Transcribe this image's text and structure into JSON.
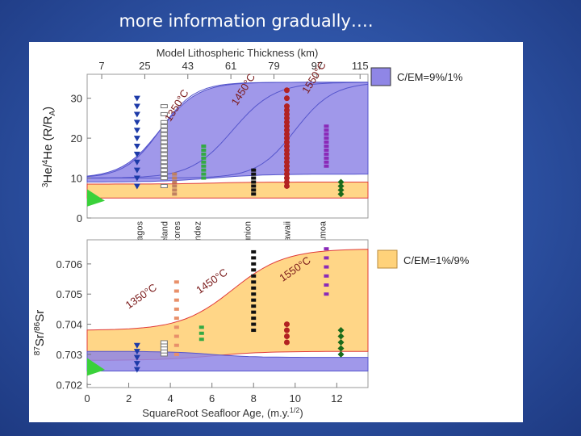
{
  "slide": {
    "title": "more information gradually…."
  },
  "figure": {
    "top_axis_label": "Model Lithospheric Thickness (km)",
    "top_ticks": [
      "7",
      "25",
      "43",
      "61",
      "79",
      "97",
      "115"
    ],
    "bottom_axis_label": "SquareRoot Seafloor Age, (m.y.",
    "bottom_axis_sup": "1/2",
    "bottom_axis_tail": ")",
    "colors": {
      "purple_band": "#8f86e6",
      "orange_band": "#ffd27a",
      "red_curve": "#e03a3a",
      "blue_curve": "#5555cc"
    }
  },
  "chart_data": [
    {
      "type": "scatter",
      "panel": "upper",
      "ylabel_parts": {
        "sup1": "3",
        "t1": "He/",
        "sup2": "4",
        "t2": "He (R/R",
        "sub": "A",
        "t3": ")"
      },
      "x_range": [
        0,
        13.5
      ],
      "ylim": [
        0,
        36
      ],
      "y_ticks": [
        "0",
        "10",
        "20",
        "30"
      ],
      "legend": {
        "label": "C/EM=9%/1%",
        "color": "#8f86e6",
        "position": "right"
      },
      "curve_labels": [
        "1350°C",
        "1450°C",
        "1550°C"
      ],
      "hotspot_labels": [
        {
          "name": "Galapagos",
          "x": 2.5
        },
        {
          "name": "Iceland",
          "x": 3.7
        },
        {
          "name": "Azores",
          "x": 4.3
        },
        {
          "name": "J. Fernandez",
          "x": 5.3
        },
        {
          "name": "Reunion",
          "x": 7.7
        },
        {
          "name": "Hawaii",
          "x": 9.6
        },
        {
          "name": "Samoa",
          "x": 11.3
        }
      ],
      "series": [
        {
          "name": "Galapagos",
          "marker": "triangle-down",
          "color": "#1c3aa8",
          "x": 2.4,
          "y": [
            8,
            10,
            12,
            14,
            16,
            18,
            20,
            22,
            24,
            26,
            28,
            30
          ]
        },
        {
          "name": "Iceland",
          "marker": "square-open",
          "color": "#777777",
          "x": 3.7,
          "y": [
            8,
            10,
            11,
            12,
            13,
            14,
            15,
            16,
            17,
            18,
            19,
            20,
            21,
            22,
            23,
            24,
            26,
            28
          ]
        },
        {
          "name": "Azores",
          "marker": "square",
          "color": "#c08060",
          "x": 4.2,
          "y": [
            6,
            7,
            8,
            9,
            10,
            11
          ]
        },
        {
          "name": "J. Fernandez",
          "marker": "square",
          "color": "#33aa44",
          "x": 5.6,
          "y": [
            10,
            11,
            12,
            13,
            14,
            15,
            16,
            17,
            18
          ]
        },
        {
          "name": "Reunion",
          "marker": "square",
          "color": "#111111",
          "x": 8.0,
          "y": [
            6,
            7,
            8,
            9,
            10,
            11,
            12
          ]
        },
        {
          "name": "Hawaii",
          "marker": "circle",
          "color": "#b22222",
          "x": 9.6,
          "y": [
            8,
            9,
            10,
            11,
            12,
            13,
            14,
            15,
            16,
            17,
            18,
            19,
            20,
            21,
            22,
            23,
            24,
            25,
            26,
            27,
            28,
            30,
            32
          ]
        },
        {
          "name": "Samoa",
          "marker": "square",
          "color": "#8a2ab8",
          "x": 11.5,
          "y": [
            13,
            14,
            15,
            16,
            17,
            18,
            19,
            20,
            21,
            22,
            23
          ]
        },
        {
          "name": "Other",
          "marker": "diamond",
          "color": "#1a6b1a",
          "x": 12.2,
          "y": [
            6,
            7,
            8,
            9
          ]
        }
      ]
    },
    {
      "type": "scatter",
      "panel": "lower",
      "ylabel_parts": {
        "sup1": "87",
        "t1": "Sr/",
        "sup2": "86",
        "t2": "Sr"
      },
      "x_range": [
        0,
        13.5
      ],
      "x_ticks": [
        "0",
        "2",
        "4",
        "6",
        "8",
        "10",
        "12"
      ],
      "ylim": [
        0.7019,
        0.7068
      ],
      "y_ticks": [
        "0.702",
        "0.703",
        "0.704",
        "0.705",
        "0.706"
      ],
      "legend": {
        "label": "C/EM=1%/9%",
        "color": "#ffd27a",
        "position": "right"
      },
      "curve_labels": [
        "1350°C",
        "1450°C",
        "1550°C"
      ],
      "series": [
        {
          "name": "Galapagos",
          "marker": "triangle-down",
          "color": "#1c3aa8",
          "x": 2.4,
          "y": [
            0.7025,
            0.7027,
            0.7029,
            0.7031,
            0.7033
          ]
        },
        {
          "name": "Iceland",
          "marker": "square-open",
          "color": "#777777",
          "x": 3.7,
          "y": [
            0.703,
            0.7031,
            0.7032,
            0.7033,
            0.7034
          ]
        },
        {
          "name": "Azores",
          "marker": "square",
          "color": "#e8906a",
          "x": 4.3,
          "y": [
            0.703,
            0.7033,
            0.7036,
            0.7039,
            0.7042,
            0.7045,
            0.7048,
            0.7051,
            0.7054
          ]
        },
        {
          "name": "J. Fernandez",
          "marker": "square",
          "color": "#33aa44",
          "x": 5.5,
          "y": [
            0.7035,
            0.7037,
            0.7039
          ]
        },
        {
          "name": "Reunion",
          "marker": "square",
          "color": "#111111",
          "x": 8.0,
          "y": [
            0.7038,
            0.704,
            0.7042,
            0.7044,
            0.7046,
            0.7048,
            0.705,
            0.7052,
            0.7054,
            0.7056,
            0.7058,
            0.706,
            0.7062,
            0.7064
          ]
        },
        {
          "name": "Hawaii",
          "marker": "circle",
          "color": "#b22222",
          "x": 9.6,
          "y": [
            0.7034,
            0.7036,
            0.7038,
            0.704
          ]
        },
        {
          "name": "Samoa",
          "marker": "square",
          "color": "#8a2ab8",
          "x": 11.5,
          "y": [
            0.705,
            0.7053,
            0.7056,
            0.7059,
            0.7062,
            0.7065
          ]
        },
        {
          "name": "Other",
          "marker": "diamond",
          "color": "#1a6b1a",
          "x": 12.2,
          "y": [
            0.703,
            0.7032,
            0.7034,
            0.7036,
            0.7038
          ]
        }
      ]
    }
  ]
}
